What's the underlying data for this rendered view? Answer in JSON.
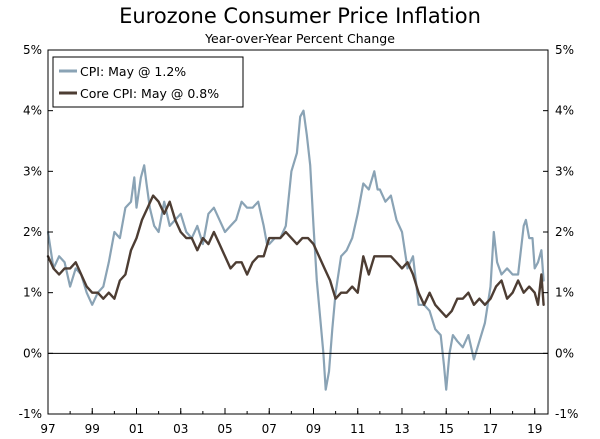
{
  "chart_data": {
    "type": "line",
    "title": "Eurozone Consumer Price Inflation",
    "subtitle": "Year-over-Year Percent Change",
    "xlabel": "",
    "ylabel": "",
    "xlim": [
      1997,
      2019.6
    ],
    "ylim": [
      -1,
      5
    ],
    "y_ticks": [
      -1,
      0,
      1,
      2,
      3,
      4,
      5
    ],
    "y_tick_labels": [
      "-1%",
      "0%",
      "1%",
      "2%",
      "3%",
      "4%",
      "5%"
    ],
    "x_ticks": [
      1997,
      1999,
      2001,
      2003,
      2005,
      2007,
      2009,
      2011,
      2013,
      2015,
      2017,
      2019
    ],
    "x_tick_labels": [
      "97",
      "99",
      "01",
      "03",
      "05",
      "07",
      "09",
      "11",
      "13",
      "15",
      "17",
      "19"
    ],
    "legend_position": "top-left",
    "series": [
      {
        "name": "CPI: May @ 1.2%",
        "color": "#8aa3b5",
        "x": [
          1997.0,
          1997.25,
          1997.5,
          1997.75,
          1998.0,
          1998.25,
          1998.5,
          1998.75,
          1999.0,
          1999.25,
          1999.5,
          1999.75,
          2000.0,
          2000.25,
          2000.5,
          2000.75,
          2000.9,
          2001.0,
          2001.2,
          2001.35,
          2001.45,
          2001.6,
          2001.8,
          2002.0,
          2002.25,
          2002.5,
          2002.75,
          2003.0,
          2003.25,
          2003.5,
          2003.75,
          2004.0,
          2004.25,
          2004.5,
          2004.75,
          2005.0,
          2005.25,
          2005.5,
          2005.75,
          2006.0,
          2006.25,
          2006.5,
          2006.75,
          2006.9,
          2007.0,
          2007.25,
          2007.5,
          2007.75,
          2008.0,
          2008.25,
          2008.4,
          2008.55,
          2008.7,
          2008.85,
          2009.0,
          2009.15,
          2009.3,
          2009.45,
          2009.55,
          2009.7,
          2009.85,
          2010.0,
          2010.25,
          2010.5,
          2010.75,
          2011.0,
          2011.25,
          2011.5,
          2011.75,
          2011.9,
          2012.0,
          2012.25,
          2012.5,
          2012.75,
          2013.0,
          2013.25,
          2013.5,
          2013.75,
          2014.0,
          2014.25,
          2014.5,
          2014.75,
          2014.9,
          2015.0,
          2015.15,
          2015.3,
          2015.5,
          2015.75,
          2016.0,
          2016.25,
          2016.5,
          2016.75,
          2017.0,
          2017.15,
          2017.3,
          2017.5,
          2017.75,
          2018.0,
          2018.25,
          2018.5,
          2018.6,
          2018.75,
          2018.9,
          2019.0,
          2019.15,
          2019.3,
          2019.4
        ],
        "values": [
          2.0,
          1.4,
          1.6,
          1.5,
          1.1,
          1.4,
          1.3,
          1.0,
          0.8,
          1.0,
          1.1,
          1.5,
          2.0,
          1.9,
          2.4,
          2.5,
          2.9,
          2.4,
          2.9,
          3.1,
          2.8,
          2.4,
          2.1,
          2.0,
          2.5,
          2.1,
          2.2,
          2.3,
          2.0,
          1.9,
          2.1,
          1.8,
          2.3,
          2.4,
          2.2,
          2.0,
          2.1,
          2.2,
          2.5,
          2.4,
          2.4,
          2.5,
          2.1,
          1.8,
          1.8,
          1.9,
          1.9,
          2.1,
          3.0,
          3.3,
          3.9,
          4.0,
          3.6,
          3.1,
          2.1,
          1.2,
          0.6,
          0.0,
          -0.6,
          -0.3,
          0.4,
          1.0,
          1.6,
          1.7,
          1.9,
          2.3,
          2.8,
          2.7,
          3.0,
          2.7,
          2.7,
          2.5,
          2.6,
          2.2,
          2.0,
          1.4,
          1.6,
          0.8,
          0.8,
          0.7,
          0.4,
          0.3,
          -0.2,
          -0.6,
          0.0,
          0.3,
          0.2,
          0.1,
          0.3,
          -0.1,
          0.2,
          0.5,
          1.1,
          2.0,
          1.5,
          1.3,
          1.4,
          1.3,
          1.3,
          2.1,
          2.2,
          1.9,
          1.9,
          1.4,
          1.5,
          1.7,
          1.2
        ]
      },
      {
        "name": "Core CPI: May @ 0.8%",
        "color": "#4d3d33",
        "x": [
          1997.0,
          1997.25,
          1997.5,
          1997.75,
          1998.0,
          1998.25,
          1998.5,
          1998.75,
          1999.0,
          1999.25,
          1999.5,
          1999.75,
          2000.0,
          2000.25,
          2000.5,
          2000.75,
          2001.0,
          2001.25,
          2001.5,
          2001.75,
          2002.0,
          2002.25,
          2002.5,
          2002.75,
          2003.0,
          2003.25,
          2003.5,
          2003.75,
          2004.0,
          2004.25,
          2004.5,
          2004.75,
          2005.0,
          2005.25,
          2005.5,
          2005.75,
          2006.0,
          2006.25,
          2006.5,
          2006.75,
          2007.0,
          2007.25,
          2007.5,
          2007.75,
          2008.0,
          2008.25,
          2008.5,
          2008.75,
          2009.0,
          2009.25,
          2009.5,
          2009.75,
          2010.0,
          2010.25,
          2010.5,
          2010.75,
          2011.0,
          2011.25,
          2011.5,
          2011.75,
          2012.0,
          2012.25,
          2012.5,
          2012.75,
          2013.0,
          2013.25,
          2013.5,
          2013.75,
          2014.0,
          2014.25,
          2014.5,
          2014.75,
          2015.0,
          2015.25,
          2015.5,
          2015.75,
          2016.0,
          2016.25,
          2016.5,
          2016.75,
          2017.0,
          2017.25,
          2017.5,
          2017.75,
          2018.0,
          2018.25,
          2018.5,
          2018.75,
          2019.0,
          2019.15,
          2019.3,
          2019.4
        ],
        "values": [
          1.6,
          1.4,
          1.3,
          1.4,
          1.4,
          1.5,
          1.3,
          1.1,
          1.0,
          1.0,
          0.9,
          1.0,
          0.9,
          1.2,
          1.3,
          1.7,
          1.9,
          2.2,
          2.4,
          2.6,
          2.5,
          2.3,
          2.5,
          2.2,
          2.0,
          1.9,
          1.9,
          1.7,
          1.9,
          1.8,
          2.0,
          1.8,
          1.6,
          1.4,
          1.5,
          1.5,
          1.3,
          1.5,
          1.6,
          1.6,
          1.9,
          1.9,
          1.9,
          2.0,
          1.9,
          1.8,
          1.9,
          1.9,
          1.8,
          1.6,
          1.4,
          1.2,
          0.9,
          1.0,
          1.0,
          1.1,
          1.0,
          1.6,
          1.3,
          1.6,
          1.6,
          1.6,
          1.6,
          1.5,
          1.4,
          1.5,
          1.3,
          1.0,
          0.8,
          1.0,
          0.8,
          0.7,
          0.6,
          0.7,
          0.9,
          0.9,
          1.0,
          0.8,
          0.9,
          0.8,
          0.9,
          1.1,
          1.2,
          0.9,
          1.0,
          1.2,
          1.0,
          1.1,
          1.0,
          0.8,
          1.3,
          0.8
        ]
      }
    ]
  }
}
